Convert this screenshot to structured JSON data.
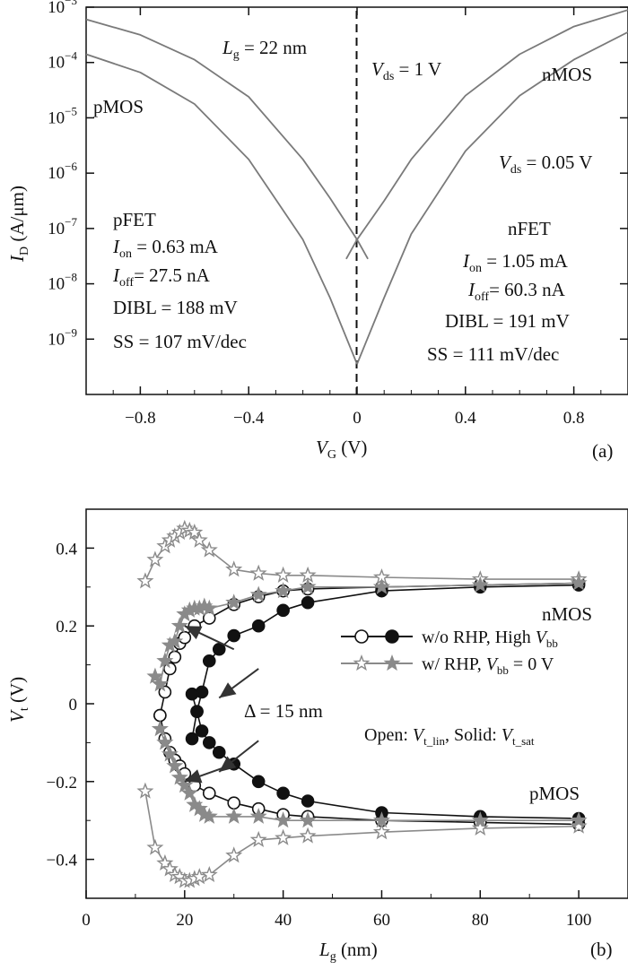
{
  "chart_data": [
    {
      "panel": "(a)",
      "type": "line",
      "x_label": "V",
      "x_label_sub": "G",
      "x_label_unit": " (V)",
      "y_label": "I",
      "y_label_sub": "D",
      "y_label_unit": " (A/μm)",
      "y_scale": "log",
      "x_range": [
        -1.0,
        1.0
      ],
      "y_range_exponent": [
        -10,
        -3
      ],
      "x_ticks": [
        {
          "v": -0.8,
          "t": "−0.8"
        },
        {
          "v": -0.4,
          "t": "−0.4"
        },
        {
          "v": 0.0,
          "t": "0"
        },
        {
          "v": 0.4,
          "t": "0.4"
        },
        {
          "v": 0.8,
          "t": "0.8"
        }
      ],
      "y_ticks": [
        {
          "e": -3,
          "t": "−3"
        },
        {
          "e": -4,
          "t": "−4"
        },
        {
          "e": -5,
          "t": "−5"
        },
        {
          "e": -6,
          "t": "−6"
        },
        {
          "e": -7,
          "t": "−7"
        },
        {
          "e": -8,
          "t": "−8"
        },
        {
          "e": -9,
          "t": "−9"
        }
      ],
      "series": [
        {
          "id": "pmos-vds-high",
          "x": [
            -1.0,
            -0.8,
            -0.6,
            -0.4,
            -0.2,
            -0.1,
            0.0,
            0.04
          ],
          "y_log10": [
            -3.22,
            -3.5,
            -3.95,
            -4.62,
            -5.75,
            -6.45,
            -7.2,
            -7.55
          ]
        },
        {
          "id": "pmos-vds-low",
          "x": [
            -1.0,
            -0.8,
            -0.6,
            -0.4,
            -0.2,
            -0.1,
            0.0
          ],
          "y_log10": [
            -3.85,
            -4.18,
            -4.75,
            -5.75,
            -7.2,
            -8.25,
            -9.45
          ]
        },
        {
          "id": "nmos-vds-high",
          "x": [
            -0.04,
            0.0,
            0.1,
            0.2,
            0.4,
            0.6,
            0.8,
            1.0
          ],
          "y_log10": [
            -7.55,
            -7.2,
            -6.5,
            -5.75,
            -4.6,
            -3.85,
            -3.35,
            -3.05
          ]
        },
        {
          "id": "nmos-vds-low",
          "x": [
            0.0,
            0.1,
            0.2,
            0.4,
            0.6,
            0.8,
            1.0
          ],
          "y_log10": [
            -9.45,
            -8.25,
            -7.1,
            -5.6,
            -4.6,
            -3.95,
            -3.45
          ]
        }
      ],
      "annotations": {
        "lg": {
          "main": "L",
          "sub": "g",
          "rest": " = 22 nm"
        },
        "vds1": {
          "main": "V",
          "sub": "ds",
          "rest": " = 1 V"
        },
        "vds2": {
          "main": "V",
          "sub": "ds",
          "rest": " = 0.05 V"
        },
        "pmos": "pMOS",
        "nmos": "nMOS",
        "pfet": {
          "title": "pFET",
          "ion": {
            "main": "I",
            "sub": "on",
            "rest": " = 0.63 mA"
          },
          "ioff": {
            "main": "I",
            "sub": "off",
            "rest": "= 27.5 nA"
          },
          "dibl": "DIBL = 188 mV",
          "ss": "SS = 107 mV/dec"
        },
        "nfet": {
          "title": "nFET",
          "ion": {
            "main": "I",
            "sub": "on",
            "rest": " = 1.05 mA"
          },
          "ioff": {
            "main": "I",
            "sub": "off",
            "rest": "= 60.3 nA"
          },
          "dibl": "DIBL = 191 mV",
          "ss": "SS = 111 mV/dec"
        },
        "panel_label": "(a)"
      }
    },
    {
      "panel": "(b)",
      "type": "line",
      "x_label": "L",
      "x_label_sub": "g",
      "x_label_unit": " (nm)",
      "y_label": "V",
      "y_label_sub": "t",
      "y_label_unit": " (V)",
      "x_range": [
        0,
        110
      ],
      "y_range": [
        -0.5,
        0.5
      ],
      "x_ticks": [
        {
          "v": 0,
          "t": "0"
        },
        {
          "v": 20,
          "t": "20"
        },
        {
          "v": 40,
          "t": "40"
        },
        {
          "v": 60,
          "t": "60"
        },
        {
          "v": 80,
          "t": "80"
        },
        {
          "v": 100,
          "t": "100"
        }
      ],
      "y_ticks": [
        {
          "v": 0.4,
          "t": "0.4"
        },
        {
          "v": 0.2,
          "t": "0.2"
        },
        {
          "v": 0.0,
          "t": "0"
        },
        {
          "v": -0.2,
          "t": "−0.2"
        },
        {
          "v": -0.4,
          "t": "−0.4"
        }
      ],
      "series": [
        {
          "id": "norhp-lin-n",
          "color": "#111111",
          "marker": "circle-open",
          "x": [
            15,
            16,
            17,
            18,
            19,
            20,
            22,
            25,
            30,
            35,
            40,
            45,
            60,
            80,
            100
          ],
          "y": [
            -0.03,
            0.03,
            0.09,
            0.12,
            0.155,
            0.17,
            0.2,
            0.22,
            0.255,
            0.275,
            0.29,
            0.295,
            0.3,
            0.305,
            0.31
          ]
        },
        {
          "id": "norhp-lin-p",
          "color": "#111111",
          "marker": "circle-open",
          "x": [
            15,
            16,
            17,
            18,
            19,
            20,
            22,
            25,
            30,
            35,
            40,
            45,
            60,
            80,
            100
          ],
          "y": [
            -0.03,
            -0.09,
            -0.125,
            -0.145,
            -0.16,
            -0.18,
            -0.21,
            -0.23,
            -0.255,
            -0.27,
            -0.285,
            -0.29,
            -0.3,
            -0.305,
            -0.31
          ]
        },
        {
          "id": "norhp-sat-n",
          "color": "#111111",
          "marker": "circle-solid",
          "x": [
            21.5,
            22.5,
            23.5,
            25,
            27,
            30,
            35,
            40,
            45,
            60,
            80,
            100
          ],
          "y": [
            -0.09,
            -0.02,
            0.03,
            0.11,
            0.14,
            0.175,
            0.2,
            0.24,
            0.26,
            0.29,
            0.3,
            0.305
          ]
        },
        {
          "id": "norhp-sat-p",
          "color": "#111111",
          "marker": "circle-solid",
          "x": [
            21.5,
            22.5,
            23.5,
            25,
            27,
            30,
            35,
            40,
            45,
            60,
            80,
            100
          ],
          "y": [
            0.025,
            -0.02,
            -0.07,
            -0.1,
            -0.125,
            -0.155,
            -0.2,
            -0.23,
            -0.25,
            -0.28,
            -0.29,
            -0.295
          ]
        },
        {
          "id": "rhp-lin-n",
          "color": "#8a8a8a",
          "marker": "star-open",
          "x": [
            12,
            14,
            16,
            17,
            18,
            19,
            20,
            21,
            22,
            23,
            25,
            30,
            35,
            40,
            45,
            60,
            80,
            100
          ],
          "y": [
            0.315,
            0.37,
            0.405,
            0.42,
            0.43,
            0.44,
            0.45,
            0.445,
            0.44,
            0.42,
            0.395,
            0.345,
            0.335,
            0.33,
            0.33,
            0.325,
            0.32,
            0.32
          ]
        },
        {
          "id": "rhp-lin-p",
          "color": "#8a8a8a",
          "marker": "star-open",
          "x": [
            12,
            14,
            16,
            17,
            18,
            19,
            20,
            21,
            22,
            23,
            25,
            30,
            35,
            40,
            45,
            60,
            80,
            100
          ],
          "y": [
            -0.225,
            -0.37,
            -0.41,
            -0.425,
            -0.44,
            -0.445,
            -0.455,
            -0.455,
            -0.45,
            -0.445,
            -0.44,
            -0.39,
            -0.35,
            -0.345,
            -0.34,
            -0.33,
            -0.32,
            -0.315
          ]
        },
        {
          "id": "rhp-sat-n",
          "color": "#8a8a8a",
          "marker": "star-solid",
          "x": [
            14,
            15,
            16,
            17,
            18,
            19,
            20,
            21,
            22,
            23,
            24,
            25,
            30,
            35,
            40,
            45,
            60,
            80,
            100
          ],
          "y": [
            0.07,
            0.05,
            0.11,
            0.15,
            0.16,
            0.2,
            0.23,
            0.24,
            0.245,
            0.245,
            0.25,
            0.245,
            0.26,
            0.28,
            0.29,
            0.3,
            0.3,
            0.305,
            0.31
          ]
        },
        {
          "id": "rhp-sat-p",
          "color": "#8a8a8a",
          "marker": "star-solid",
          "x": [
            15,
            16,
            17,
            18,
            19,
            20,
            21,
            22,
            23,
            24,
            25,
            30,
            35,
            40,
            45,
            60,
            80,
            100
          ],
          "y": [
            -0.065,
            -0.1,
            -0.13,
            -0.16,
            -0.19,
            -0.21,
            -0.23,
            -0.26,
            -0.27,
            -0.285,
            -0.29,
            -0.29,
            -0.29,
            -0.3,
            -0.3,
            -0.3,
            -0.3,
            -0.3
          ]
        }
      ],
      "arrows": [
        {
          "from": [
            30,
            0.14
          ],
          "to": [
            20,
            0.2
          ]
        },
        {
          "from": [
            30,
            -0.155
          ],
          "to": [
            20,
            -0.2
          ]
        },
        {
          "from": [
            35,
            0.09
          ],
          "to": [
            27,
            0.015
          ]
        },
        {
          "from": [
            35,
            -0.095
          ],
          "to": [
            27,
            -0.175
          ]
        }
      ],
      "legend": [
        {
          "marker_open": "circle-open",
          "marker_solid": "circle-solid",
          "color": "#111111",
          "main": "w/o RHP, High ",
          "v": "V",
          "sub": "bb",
          "rest": ""
        },
        {
          "marker_open": "star-open",
          "marker_solid": "star-solid",
          "color": "#8a8a8a",
          "main": "w/ RHP, ",
          "v": "V",
          "sub": "bb",
          "rest": " = 0 V"
        }
      ],
      "annotations": {
        "delta": "Δ = 15 nm",
        "nmos": "nMOS",
        "pmos": "pMOS",
        "note_open": "Open: ",
        "note_vlin_main": "V",
        "note_vlin_sub": "t_lin",
        "note_mid": ", Solid: ",
        "note_vsat_main": "V",
        "note_vsat_sub": "t_sat",
        "panel_label": "(b)"
      }
    }
  ]
}
